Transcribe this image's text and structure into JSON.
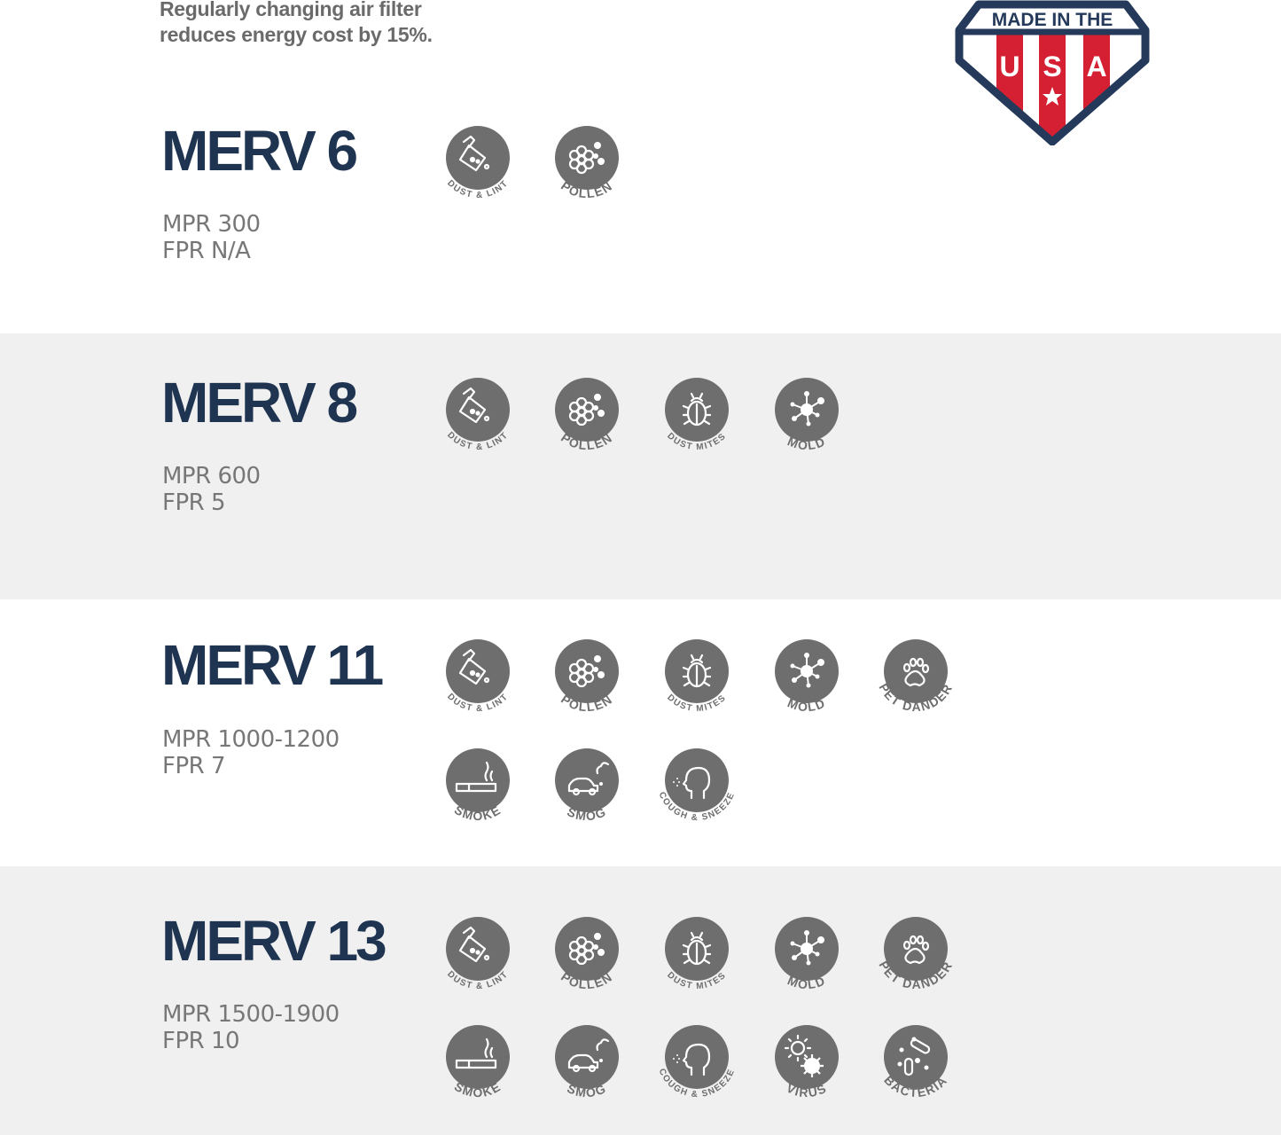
{
  "tagline": {
    "line1": "Regularly changing air filter",
    "line2": "reduces energy cost by 15%."
  },
  "badge": {
    "top_text": "MADE IN THE",
    "letters": [
      "U",
      "S",
      "A"
    ],
    "colors": {
      "navy": "#253a5a",
      "red": "#d42032",
      "white": "#ffffff"
    }
  },
  "colors": {
    "heading": "#1f3450",
    "icon_fill": "#6e6e6e",
    "band_gray": "#f0f0f0",
    "spec_text": "#777777"
  },
  "tiers": [
    {
      "title": "MERV 6",
      "mpr": "MPR 300",
      "fpr": "FPR N/A",
      "icons": [
        {
          "icon": "dust-lint",
          "label": "DUST & LINT"
        },
        {
          "icon": "pollen",
          "label": "POLLEN"
        }
      ]
    },
    {
      "title": "MERV 8",
      "mpr": "MPR 600",
      "fpr": "FPR 5",
      "icons": [
        {
          "icon": "dust-lint",
          "label": "DUST & LINT"
        },
        {
          "icon": "pollen",
          "label": "POLLEN"
        },
        {
          "icon": "dust-mites",
          "label": "DUST   MITES"
        },
        {
          "icon": "mold",
          "label": "MOLD"
        }
      ]
    },
    {
      "title": "MERV 11",
      "mpr": "MPR 1000-1200",
      "fpr": "FPR 7",
      "icons": [
        {
          "icon": "dust-lint",
          "label": "DUST & LINT"
        },
        {
          "icon": "pollen",
          "label": "POLLEN"
        },
        {
          "icon": "dust-mites",
          "label": "DUST   MITES"
        },
        {
          "icon": "mold",
          "label": "MOLD"
        },
        {
          "icon": "pet-dander",
          "label": "PET DANDER"
        },
        {
          "icon": "smoke",
          "label": "SMOKE"
        },
        {
          "icon": "smog",
          "label": "SMOG"
        },
        {
          "icon": "cough-sneeze",
          "label": "COUGH & SNEEZE"
        }
      ]
    },
    {
      "title": "MERV 13",
      "mpr": "MPR 1500-1900",
      "fpr": "FPR 10",
      "icons": [
        {
          "icon": "dust-lint",
          "label": "DUST & LINT"
        },
        {
          "icon": "pollen",
          "label": "POLLEN"
        },
        {
          "icon": "dust-mites",
          "label": "DUST   MITES"
        },
        {
          "icon": "mold",
          "label": "MOLD"
        },
        {
          "icon": "pet-dander",
          "label": "PET DANDER"
        },
        {
          "icon": "smoke",
          "label": "SMOKE"
        },
        {
          "icon": "smog",
          "label": "SMOG"
        },
        {
          "icon": "cough-sneeze",
          "label": "COUGH & SNEEZE"
        },
        {
          "icon": "virus",
          "label": "VIRUS"
        },
        {
          "icon": "bacteria",
          "label": "BACTERIA"
        }
      ]
    }
  ]
}
